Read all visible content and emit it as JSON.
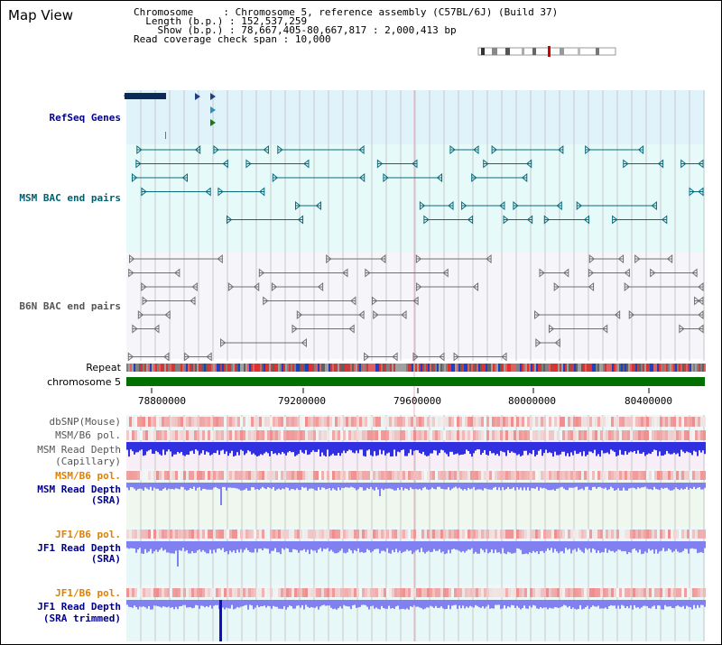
{
  "view": {
    "title": "Map View",
    "info": {
      "chromosome_label": "Chromosome",
      "chromosome_value": "Chromosome 5, reference assembly (C57BL/6J) (Build 37)",
      "length_label": "Length (b.p.)",
      "length_value": "152,537,259",
      "show_label": "Show (b.p.)",
      "show_value": "78,667,405-80,667,817 : 2,000,413 bp",
      "coverage_label": "Read coverage check span",
      "coverage_value": "10,000"
    }
  },
  "tracks": {
    "refseq": "RefSeq Genes",
    "msm_bac": "MSM BAC end pairs",
    "b6n_bac": "B6N BAC end pairs",
    "repeat": "Repeat",
    "chromosome": "chromosome 5",
    "dbsnp": "dbSNP(Mouse)",
    "msm_b6_pol_1": "MSM/B6 pol.",
    "msm_read_depth_cap_1": "MSM Read Depth",
    "msm_read_depth_cap_2": "(Capillary)",
    "msm_b6_pol_2": "MSM/B6 pol.",
    "msm_read_depth_sra_1": "MSM Read Depth",
    "msm_read_depth_sra_2": "(SRA)",
    "jf1_b6_pol_1": "JF1/B6 pol.",
    "jf1_read_depth_sra_1": "JF1 Read Depth",
    "jf1_read_depth_sra_2": "(SRA)",
    "jf1_b6_pol_2": "JF1/B6 pol.",
    "jf1_read_depth_trim_1": "JF1 Read Depth",
    "jf1_read_depth_trim_2": "(SRA trimmed)"
  },
  "axis": {
    "ticks": [
      "78800000",
      "79200000",
      "79600000",
      "80000000",
      "80400000"
    ]
  },
  "colors": {
    "refseq_bg": "#e0f2fa",
    "msm_bac_bg": "#e6fafa",
    "b6n_bac_bg": "#f6f6fa",
    "chromosome_bar": "#007000",
    "depth_blue": "#3030e0",
    "depth_light": "#8080f0",
    "pol_red": "#f04040",
    "gridline": "#c8c8c8"
  }
}
